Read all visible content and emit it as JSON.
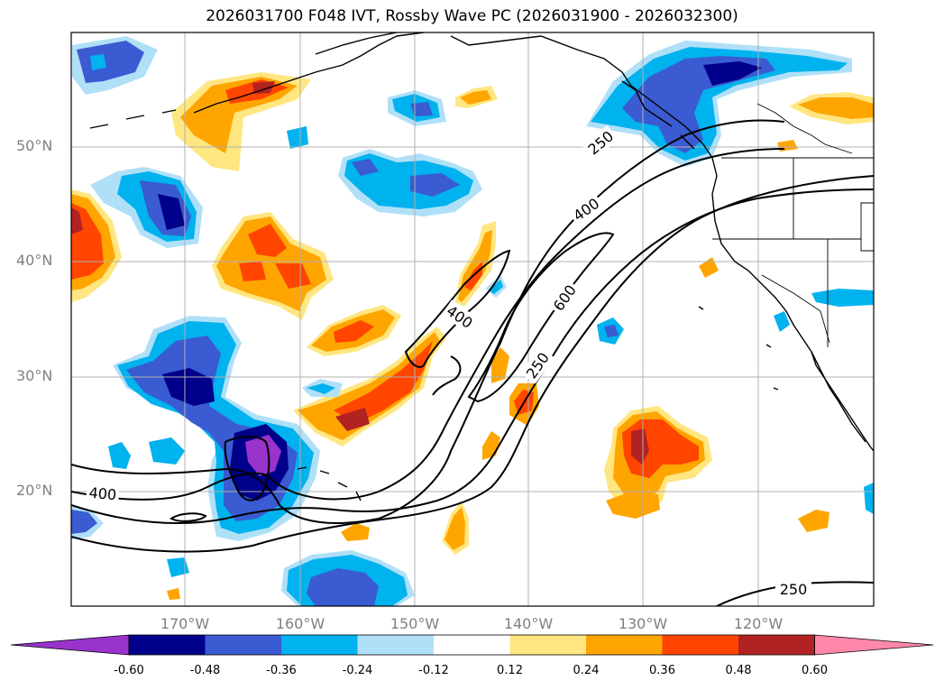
{
  "title": "2026031700 F048 IVT, Rossby Wave PC (2026031900 - 2026032300)",
  "map": {
    "lat_labels": [
      "50°N",
      "40°N",
      "30°N",
      "20°N"
    ],
    "lon_labels": [
      "170°W",
      "160°W",
      "150°W",
      "140°W",
      "130°W",
      "120°W"
    ],
    "contour_labels": [
      "250",
      "400",
      "600",
      "400",
      "250",
      "400",
      "250"
    ],
    "colors": {
      "land_outline": "#000000",
      "gridline": "#b0b0b0",
      "axis_label": "#808080"
    }
  },
  "colorbar": {
    "levels": [
      "-0.60",
      "-0.48",
      "-0.36",
      "-0.24",
      "-0.12",
      "0.12",
      "0.24",
      "0.36",
      "0.48",
      "0.60"
    ],
    "colors": [
      "#9933cc",
      "#00008b",
      "#3a5bd1",
      "#00b2ee",
      "#b0e0f8",
      "#ffffff",
      "#ffe680",
      "#ffa500",
      "#ff4500",
      "#b22222",
      "#ff88aa"
    ],
    "extend": "both"
  }
}
